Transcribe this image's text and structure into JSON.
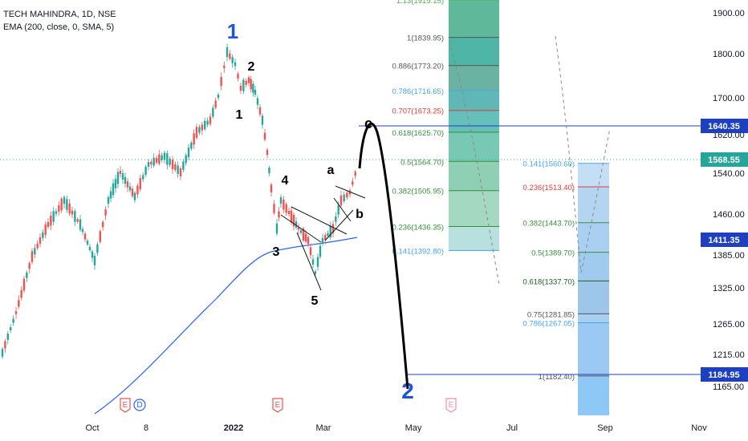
{
  "header": {
    "symbol_line": "TECH MAHINDRA, 1D, NSE",
    "indicator_line": "EMA (200, close, 0, SMA, 5)"
  },
  "colors": {
    "up": "#26a69a",
    "down": "#ef5350",
    "ema": "#2962ff",
    "wave_label": "#1e56d8",
    "price_line_blue": "#1e3fbf",
    "last_price_bg": "#26a69a"
  },
  "chart_data": {
    "type": "candlestick",
    "x_ticks": [
      "Oct",
      "8",
      "2022",
      "Mar",
      "May",
      "Jul",
      "Sep",
      "Nov"
    ],
    "y_ticks": [
      "1900.00",
      "1800.00",
      "1700.00",
      "1620.00",
      "1540.00",
      "1460.00",
      "1385.00",
      "1325.00",
      "1265.00",
      "1215.00",
      "1165.00"
    ],
    "price_tags": [
      {
        "label": "1640.35",
        "style": "blue"
      },
      {
        "label": "1568.55",
        "style": "last"
      },
      {
        "label": "1411.35",
        "style": "blue"
      },
      {
        "label": "1184.95",
        "style": "blue"
      }
    ],
    "wave_labels": [
      "1",
      "2",
      "1",
      "2",
      "3",
      "4",
      "5",
      "a",
      "b",
      "c"
    ],
    "event_markers": [
      "E",
      "D",
      "E",
      "E"
    ],
    "fib_upper": [
      {
        "label": "1.13(1919.15)",
        "color": "#4caf50"
      },
      {
        "label": "1(1839.95)",
        "color": "#555555"
      },
      {
        "label": "0.886(1773.20)",
        "color": "#555555"
      },
      {
        "label": "0.786(1716.65)",
        "color": "#42a5f5"
      },
      {
        "label": "0.707(1673.25)",
        "color": "#e53935"
      },
      {
        "label": "0.618(1625.70)",
        "color": "#388e3c"
      },
      {
        "label": "0.5(1564.70)",
        "color": "#388e3c"
      },
      {
        "label": "0.382(1505.95)",
        "color": "#388e3c"
      },
      {
        "label": "0.236(1436.35)",
        "color": "#388e3c"
      },
      {
        "label": "0.141(1392.80)",
        "color": "#42a5f5"
      }
    ],
    "fib_lower": [
      {
        "label": "0.141(1560.60)",
        "color": "#42a5f5"
      },
      {
        "label": "0.236(1513.40)",
        "color": "#e53935"
      },
      {
        "label": "0.382(1443.70)",
        "color": "#388e3c"
      },
      {
        "label": "0.5(1389.70)",
        "color": "#388e3c"
      },
      {
        "label": "0.618(1337.70)",
        "color": "#1b5e20"
      },
      {
        "label": "0.75(1281.85)",
        "color": "#555555"
      },
      {
        "label": "0.786(1267.05)",
        "color": "#42a5f5"
      },
      {
        "label": "1(1182.40)",
        "color": "#555555"
      }
    ]
  }
}
